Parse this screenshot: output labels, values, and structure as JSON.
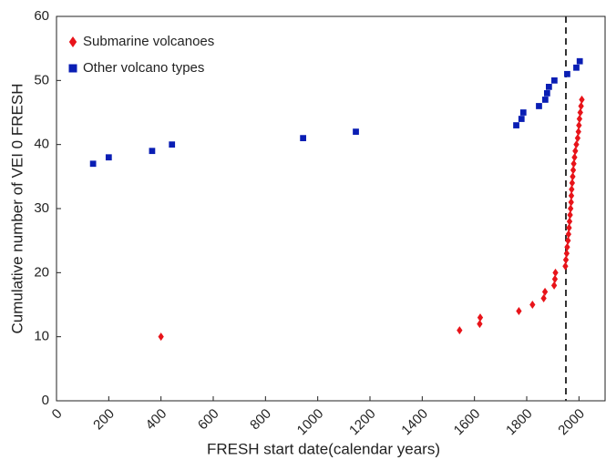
{
  "chart_data": {
    "type": "scatter",
    "x_label": "FRESH start date(calendar years)",
    "y_label": "Cumulative number of VEI 0 FRESH",
    "xlim": [
      0,
      2100
    ],
    "xticks": [
      0,
      200,
      400,
      600,
      800,
      1000,
      1200,
      1400,
      1600,
      1800,
      2000
    ],
    "ylim": [
      0,
      60
    ],
    "yticks": [
      0,
      10,
      20,
      30,
      40,
      50,
      60
    ],
    "vline": 1950,
    "legend": "upper-left",
    "series": [
      {
        "name": "Submarine volcanoes",
        "color": "#e8141a",
        "marker": "diamond",
        "x": [
          400,
          1543,
          1620,
          1622,
          1770,
          1822,
          1865,
          1870,
          1905,
          1908,
          1910,
          1948,
          1950,
          1953,
          1955,
          1958,
          1960,
          1962,
          1964,
          1966,
          1968,
          1970,
          1971,
          1972,
          1974,
          1976,
          1978,
          1980,
          1983,
          1986,
          1990,
          1995,
          1998,
          2000,
          2002,
          2005,
          2008,
          2011
        ],
        "values": [
          10,
          11,
          12,
          13,
          14,
          15,
          16,
          17,
          18,
          19,
          20,
          21,
          22,
          23,
          24,
          25,
          26,
          27,
          28,
          29,
          30,
          31,
          32,
          33,
          34,
          35,
          36,
          37,
          38,
          39,
          40,
          41,
          42,
          43,
          44,
          45,
          46,
          47
        ]
      },
      {
        "name": "Other volcano types",
        "color": "#0a1eb4",
        "marker": "square",
        "x": [
          140,
          200,
          366,
          442,
          944,
          1146,
          1760,
          1780,
          1787,
          1847,
          1871,
          1878,
          1885,
          1906,
          1955,
          1990,
          2003
        ],
        "values": [
          37,
          38,
          39,
          40,
          41,
          42,
          43,
          44,
          45,
          46,
          47,
          48,
          49,
          50,
          51,
          52,
          53
        ]
      }
    ]
  }
}
